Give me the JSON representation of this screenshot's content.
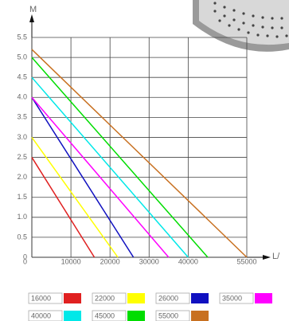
{
  "chart_data": {
    "type": "line",
    "y_label": "M",
    "x_label": "L/",
    "xlim": [
      0,
      55000
    ],
    "ylim": [
      0,
      5.5
    ],
    "xticks": [
      0,
      10000,
      20000,
      30000,
      40000,
      55000
    ],
    "yticks": [
      0,
      0.5,
      {
        "value": 1,
        "label": "1.0"
      },
      1.5,
      {
        "value": 2,
        "label": "2.0"
      },
      2.5,
      {
        "value": 3,
        "label": "3.0"
      },
      3.5,
      {
        "value": 4,
        "label": "4.0"
      },
      4.5,
      {
        "value": 5,
        "label": "5.0"
      },
      5.5
    ],
    "grid": true,
    "series": [
      {
        "name": "16000",
        "color": "#e02020",
        "x": [
          0,
          16000
        ],
        "values": [
          2.5,
          0
        ]
      },
      {
        "name": "22000",
        "color": "#ffff00",
        "x": [
          0,
          22000
        ],
        "values": [
          3.0,
          0
        ]
      },
      {
        "name": "26000",
        "color": "#1010c0",
        "x": [
          0,
          26000
        ],
        "values": [
          4.0,
          0
        ]
      },
      {
        "name": "35000",
        "color": "#ff00ff",
        "x": [
          0,
          35000
        ],
        "values": [
          4.0,
          0
        ]
      },
      {
        "name": "40000",
        "color": "#00e8e8",
        "x": [
          0,
          40000
        ],
        "values": [
          4.5,
          0
        ]
      },
      {
        "name": "45000",
        "color": "#00dd00",
        "x": [
          0,
          45000
        ],
        "values": [
          5.0,
          0
        ]
      },
      {
        "name": "55000",
        "color": "#c87020",
        "x": [
          0,
          55000
        ],
        "values": [
          5.2,
          0
        ]
      }
    ]
  }
}
